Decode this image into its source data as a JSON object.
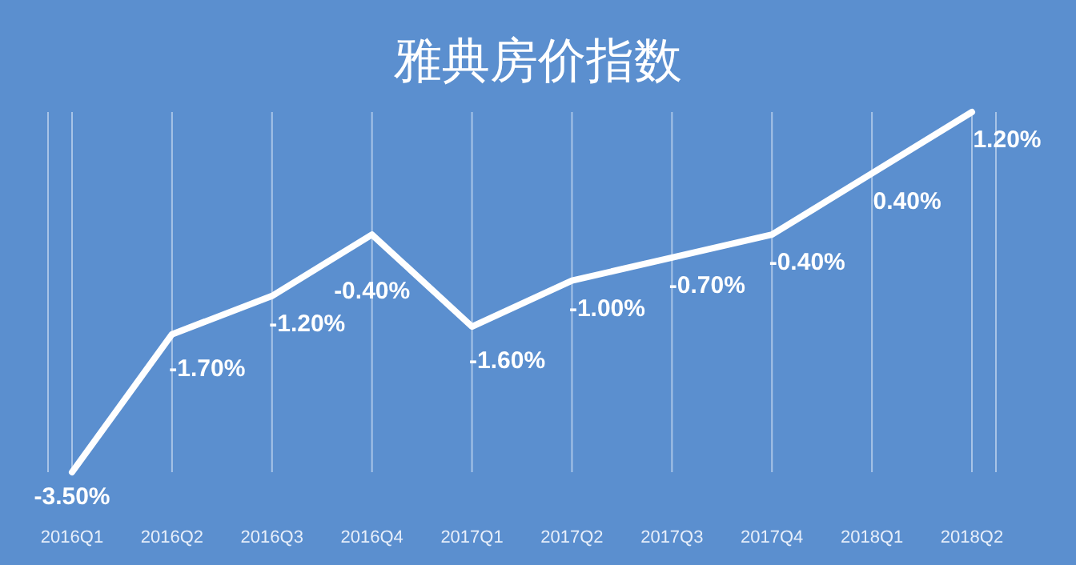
{
  "chart_data": {
    "type": "line",
    "title": "雅典房价指数",
    "categories": [
      "2016Q1",
      "2016Q2",
      "2016Q3",
      "2016Q4",
      "2017Q1",
      "2017Q2",
      "2017Q3",
      "2017Q4",
      "2018Q1",
      "2018Q2"
    ],
    "series": [
      {
        "color": "#ffffff",
        "values": [
          -3.5,
          -1.7,
          -1.2,
          -0.4,
          -1.6,
          -1.0,
          -0.7,
          -0.4,
          0.4,
          1.2
        ],
        "value_labels": [
          "-3.50%",
          "-1.70%",
          "-1.20%",
          "-0.40%",
          "-1.60%",
          "-1.00%",
          "-0.70%",
          "-0.40%",
          "0.40%",
          "1.20%"
        ]
      }
    ],
    "grid": "x",
    "marker": "none",
    "line_style": "solid",
    "legend": false
  }
}
